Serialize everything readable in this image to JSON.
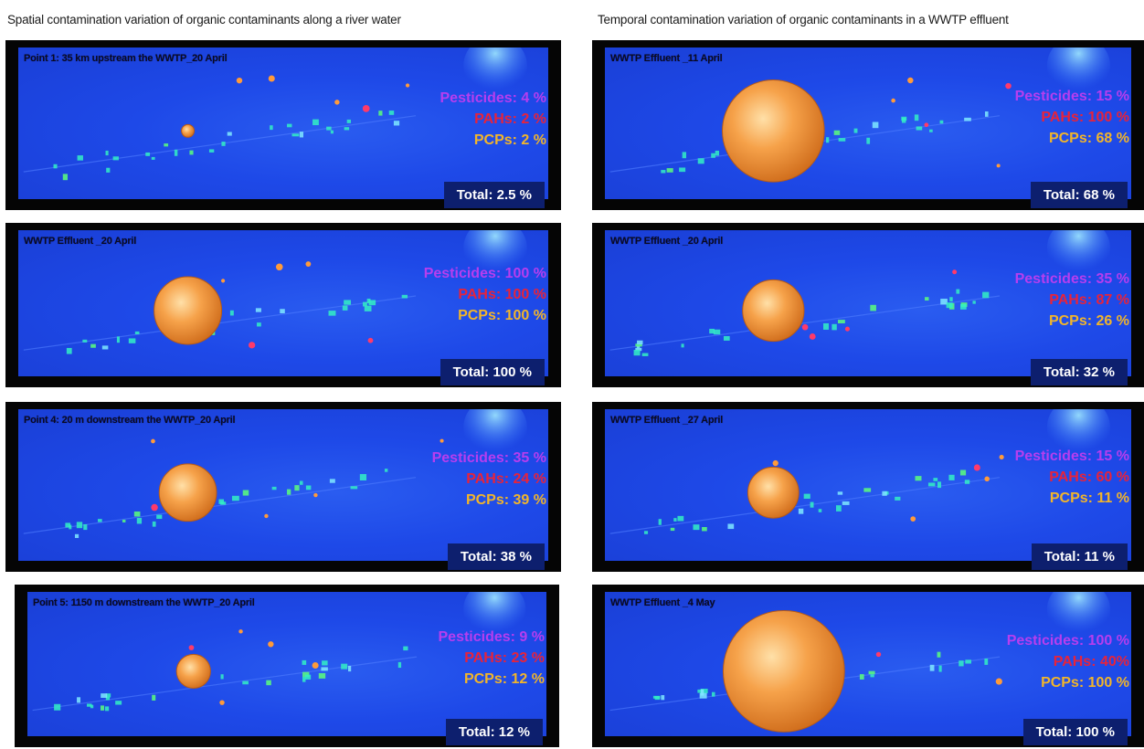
{
  "headers": {
    "left": "Spatial contamination variation of organic contaminants along a river water",
    "right": "Temporal contamination variation of organic contaminants in a WWTP effluent"
  },
  "panels": [
    {
      "title": "Point 1: 35 km upstream the WWTP_20 April",
      "pesticides": "Pesticides: 4 %",
      "pahs": "PAHs: 2 %",
      "pcps": "PCPs: 2 %",
      "total": "Total: 2.5 %",
      "bubble": 0.1
    },
    {
      "title": "WWTP Effluent _20 April",
      "pesticides": "Pesticides: 100 %",
      "pahs": "PAHs: 100 %",
      "pcps": "PCPs: 100 %",
      "total": "Total: 100 %",
      "bubble": 0.55
    },
    {
      "title": "Point 4: 20 m downstream the WWTP_20 April",
      "pesticides": "Pesticides: 35 %",
      "pahs": "PAHs: 24 %",
      "pcps": "PCPs: 39 %",
      "total": "Total: 38 %",
      "bubble": 0.45
    },
    {
      "title": "Point 5: 1150 m downstream the WWTP_20 April",
      "pesticides": "Pesticides: 9 %",
      "pahs": "PAHs: 23 %",
      "pcps": "PCPs: 12 %",
      "total": "Total: 12 %",
      "bubble": 0.28
    },
    {
      "title": "WWTP Effluent _11 April",
      "pesticides": "Pesticides: 15 %",
      "pahs": "PAHs: 100 %",
      "pcps": "PCPs: 68 %",
      "total": "Total: 68 %",
      "bubble": 0.8
    },
    {
      "title": "WWTP Effluent _20 April",
      "pesticides": "Pesticides: 35 %",
      "pahs": "PAHs: 87 %",
      "pcps": "PCPs: 26 %",
      "total": "Total: 32 %",
      "bubble": 0.5
    },
    {
      "title": "WWTP Effluent _27 April",
      "pesticides": "Pesticides: 15 %",
      "pahs": "PAHs: 60 %",
      "pcps": "PCPs: 11 %",
      "total": "Total: 11 %",
      "bubble": 0.4
    },
    {
      "title": "WWTP Effluent _4 May",
      "pesticides": "Pesticides: 100 %",
      "pahs": "PAHs: 40%",
      "pcps": "PCPs: 100 %",
      "total": "Total: 100 %",
      "bubble": 1.0
    }
  ]
}
